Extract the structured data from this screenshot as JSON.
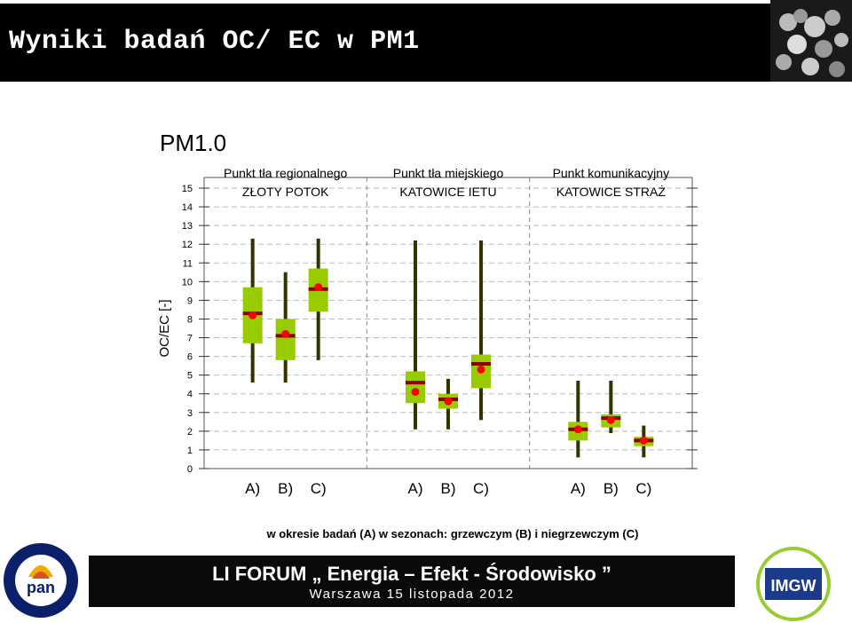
{
  "header": {
    "title": "Wyniki badań   OC/ EC w  PM1"
  },
  "footer": {
    "line1": "LI FORUM  „ Energia – Efekt - Środowisko ”",
    "line2": "Warszawa 15 listopada 2012"
  },
  "logos": {
    "left_ring_text": "INSTYTUT PODSTAW INŻYNIERII ŚRODOWISKA",
    "left_center": "pan",
    "right": "IMGW"
  },
  "colors": {
    "box": "#99cc00",
    "median": "#8b0000",
    "mean": "#ff0000",
    "whisker": "#333300"
  },
  "chart_data": {
    "type": "box",
    "title": "PM1.0",
    "ylabel": "OC/EC [-]",
    "ylim": [
      0,
      15
    ],
    "yticks": [
      0,
      1,
      2,
      3,
      4,
      5,
      6,
      7,
      8,
      9,
      10,
      11,
      12,
      13,
      14,
      15
    ],
    "grid": "horizontal dashed",
    "caption": "w okresie badań (A)  w sezonach: grzewczym (B) i niegrzewczym (C)",
    "groups": [
      {
        "name_line1": "Punkt tła regionalnego",
        "name_line2": "ZŁOTY POTOK",
        "boxes": [
          {
            "label": "A)",
            "min": 4.6,
            "q1": 6.7,
            "median": 8.3,
            "q3": 9.7,
            "max": 12.3,
            "mean": 8.2
          },
          {
            "label": "B)",
            "min": 4.6,
            "q1": 5.8,
            "median": 7.1,
            "q3": 8.0,
            "max": 10.5,
            "mean": 7.2
          },
          {
            "label": "C)",
            "min": 5.8,
            "q1": 8.4,
            "median": 9.6,
            "q3": 10.7,
            "max": 12.3,
            "mean": 9.7
          }
        ]
      },
      {
        "name_line1": "Punkt tła miejskiego",
        "name_line2": "KATOWICE IETU",
        "boxes": [
          {
            "label": "A)",
            "min": 2.1,
            "q1": 3.5,
            "median": 4.6,
            "q3": 5.2,
            "max": 12.2,
            "mean": 4.1
          },
          {
            "label": "B)",
            "min": 2.1,
            "q1": 3.2,
            "median": 3.7,
            "q3": 4.0,
            "max": 4.8,
            "mean": 3.6
          },
          {
            "label": "C)",
            "min": 2.6,
            "q1": 4.3,
            "median": 5.6,
            "q3": 6.1,
            "max": 12.2,
            "mean": 5.3
          }
        ]
      },
      {
        "name_line1": "Punkt komunikacyjny",
        "name_line2": "KATOWICE STRAŻ",
        "boxes": [
          {
            "label": "A)",
            "min": 0.6,
            "q1": 1.5,
            "median": 2.1,
            "q3": 2.5,
            "max": 4.7,
            "mean": 2.1
          },
          {
            "label": "B)",
            "min": 1.9,
            "q1": 2.2,
            "median": 2.7,
            "q3": 2.9,
            "max": 4.7,
            "mean": 2.6
          },
          {
            "label": "C)",
            "min": 0.6,
            "q1": 1.2,
            "median": 1.5,
            "q3": 1.7,
            "max": 2.3,
            "mean": 1.5
          }
        ]
      }
    ]
  }
}
